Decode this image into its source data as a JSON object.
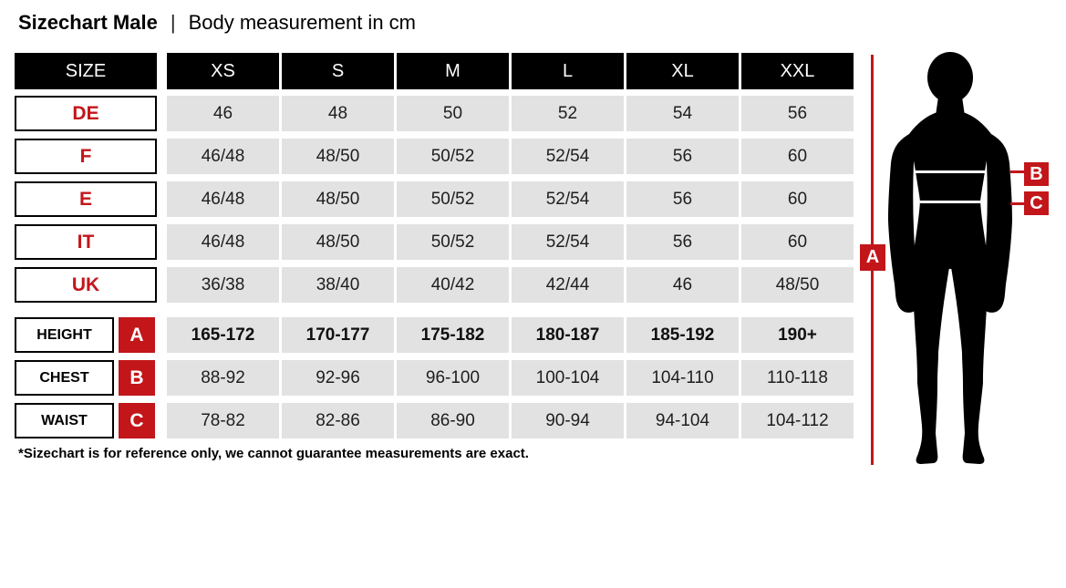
{
  "title": {
    "main": "Sizechart Male",
    "separator": "|",
    "subtitle": "Body measurement in cm"
  },
  "table": {
    "header": [
      "SIZE",
      "XS",
      "S",
      "M",
      "L",
      "XL",
      "XXL"
    ],
    "size_rows": [
      {
        "label": "DE",
        "values": [
          "46",
          "48",
          "50",
          "52",
          "54",
          "56"
        ]
      },
      {
        "label": "F",
        "values": [
          "46/48",
          "48/50",
          "50/52",
          "52/54",
          "56",
          "60"
        ]
      },
      {
        "label": "E",
        "values": [
          "46/48",
          "48/50",
          "50/52",
          "52/54",
          "56",
          "60"
        ]
      },
      {
        "label": "IT",
        "values": [
          "46/48",
          "48/50",
          "50/52",
          "52/54",
          "56",
          "60"
        ]
      },
      {
        "label": "UK",
        "values": [
          "36/38",
          "38/40",
          "40/42",
          "42/44",
          "46",
          "48/50"
        ]
      }
    ],
    "measurement_rows": [
      {
        "label": "HEIGHT",
        "marker": "A",
        "bold": true,
        "values": [
          "165-172",
          "170-177",
          "175-182",
          "180-187",
          "185-192",
          "190+"
        ]
      },
      {
        "label": "CHEST",
        "marker": "B",
        "bold": false,
        "values": [
          "88-92",
          "92-96",
          "96-100",
          "100-104",
          "104-110",
          "110-118"
        ]
      },
      {
        "label": "WAIST",
        "marker": "C",
        "bold": false,
        "values": [
          "78-82",
          "82-86",
          "86-90",
          "90-94",
          "94-104",
          "104-112"
        ]
      }
    ]
  },
  "footnote": "*Sizechart is for reference only, we cannot guarantee measurements are exact.",
  "figure": {
    "markers": {
      "height": "A",
      "chest": "B",
      "waist": "C"
    }
  },
  "colors": {
    "accent_red": "#c2161b",
    "cell_gray": "#e2e2e2",
    "cell_black": "#000000"
  },
  "chart_data": {
    "type": "table",
    "title": "Sizechart Male | Body measurement in cm",
    "columns": [
      "SIZE",
      "XS",
      "S",
      "M",
      "L",
      "XL",
      "XXL"
    ],
    "rows": [
      [
        "DE",
        "46",
        "48",
        "50",
        "52",
        "54",
        "56"
      ],
      [
        "F",
        "46/48",
        "48/50",
        "50/52",
        "52/54",
        "56",
        "60"
      ],
      [
        "E",
        "46/48",
        "48/50",
        "50/52",
        "52/54",
        "56",
        "60"
      ],
      [
        "IT",
        "46/48",
        "48/50",
        "50/52",
        "52/54",
        "56",
        "60"
      ],
      [
        "UK",
        "36/38",
        "38/40",
        "40/42",
        "42/44",
        "46",
        "48/50"
      ],
      [
        "HEIGHT (A)",
        "165-172",
        "170-177",
        "175-182",
        "180-187",
        "185-192",
        "190+"
      ],
      [
        "CHEST (B)",
        "88-92",
        "92-96",
        "96-100",
        "100-104",
        "104-110",
        "110-118"
      ],
      [
        "WAIST (C)",
        "78-82",
        "82-86",
        "86-90",
        "90-94",
        "94-104",
        "104-112"
      ]
    ],
    "footnote": "*Sizechart is for reference only, we cannot guarantee measurements are exact.",
    "legend": "A=height line on silhouette, B=chest line, C=waist line"
  }
}
